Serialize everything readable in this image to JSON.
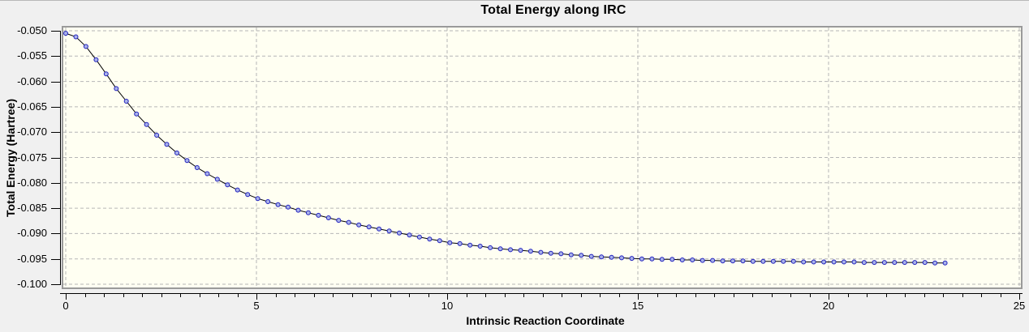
{
  "page": {
    "background_color": "#f0f0f0"
  },
  "chart_data": {
    "type": "line",
    "title": "Total Energy along IRC",
    "xlabel": "Intrinsic Reaction Coordinate",
    "ylabel": "Total Energy (Hartree)",
    "xlim": [
      0,
      25
    ],
    "ylim": [
      -0.1,
      -0.05
    ],
    "grid": "dashed",
    "legend": "none",
    "x_major_ticks": [
      0,
      5,
      10,
      15,
      20,
      25
    ],
    "x_major_tick_labels": [
      "0",
      "5",
      "10",
      "15",
      "20",
      "25"
    ],
    "x_minor_tick_step": 0.5,
    "y_ticks": [
      -0.05,
      -0.055,
      -0.06,
      -0.065,
      -0.07,
      -0.075,
      -0.08,
      -0.085,
      -0.09,
      -0.095,
      -0.1
    ],
    "y_tick_labels": [
      "-0.050",
      "-0.055",
      "-0.060",
      "-0.065",
      "-0.070",
      "-0.075",
      "-0.080",
      "-0.085",
      "-0.090",
      "-0.095",
      "-0.100"
    ],
    "colors": {
      "plot_background": "#fffff2",
      "frame": "#9a9a9a",
      "gridline": "#b6b6b6",
      "line": "#000000",
      "marker_stroke": "#2121bd",
      "marker_fill": "#a9b2e9",
      "text": "#000000"
    },
    "series": [
      {
        "name": "Total Energy",
        "marker": "circle",
        "x": [
          0,
          0.265,
          0.53,
          0.795,
          1.06,
          1.325,
          1.59,
          1.855,
          2.12,
          2.385,
          2.65,
          2.915,
          3.18,
          3.445,
          3.71,
          3.975,
          4.24,
          4.505,
          4.77,
          5.035,
          5.3,
          5.565,
          5.83,
          6.095,
          6.36,
          6.625,
          6.89,
          7.155,
          7.42,
          7.685,
          7.95,
          8.215,
          8.48,
          8.745,
          9.01,
          9.275,
          9.54,
          9.805,
          10.07,
          10.335,
          10.6,
          10.865,
          11.13,
          11.395,
          11.66,
          11.925,
          12.19,
          12.455,
          12.72,
          12.985,
          13.25,
          13.515,
          13.78,
          14.045,
          14.31,
          14.575,
          14.84,
          15.105,
          15.37,
          15.635,
          15.9,
          16.165,
          16.43,
          16.695,
          16.96,
          17.225,
          17.49,
          17.755,
          18.02,
          18.285,
          18.55,
          18.815,
          19.08,
          19.345,
          19.61,
          19.875,
          20.14,
          20.405,
          20.67,
          20.935,
          21.2,
          21.465,
          21.73,
          21.995,
          22.26,
          22.525,
          22.79,
          23.055
        ],
        "y": [
          -0.0505,
          -0.0512,
          -0.0531,
          -0.0557,
          -0.0585,
          -0.0614,
          -0.0639,
          -0.0664,
          -0.0685,
          -0.0706,
          -0.0724,
          -0.0741,
          -0.0756,
          -0.077,
          -0.0782,
          -0.0793,
          -0.0804,
          -0.0814,
          -0.0823,
          -0.0831,
          -0.0837,
          -0.0843,
          -0.0848,
          -0.0854,
          -0.0859,
          -0.0864,
          -0.0869,
          -0.0874,
          -0.0878,
          -0.0883,
          -0.0887,
          -0.0891,
          -0.0895,
          -0.0899,
          -0.0903,
          -0.0907,
          -0.0911,
          -0.0914,
          -0.0918,
          -0.092,
          -0.0923,
          -0.0925,
          -0.0928,
          -0.093,
          -0.0932,
          -0.0933,
          -0.0935,
          -0.0937,
          -0.0939,
          -0.094,
          -0.0942,
          -0.0943,
          -0.0945,
          -0.0946,
          -0.0947,
          -0.0948,
          -0.0949,
          -0.095,
          -0.095,
          -0.0951,
          -0.0951,
          -0.0952,
          -0.0952,
          -0.0953,
          -0.0953,
          -0.0954,
          -0.0954,
          -0.0954,
          -0.0955,
          -0.0955,
          -0.0955,
          -0.0955,
          -0.0955,
          -0.0956,
          -0.0956,
          -0.0956,
          -0.0956,
          -0.0956,
          -0.0956,
          -0.0957,
          -0.0957,
          -0.0957,
          -0.0957,
          -0.0957,
          -0.0957,
          -0.0957,
          -0.0958,
          -0.0958
        ]
      }
    ]
  }
}
